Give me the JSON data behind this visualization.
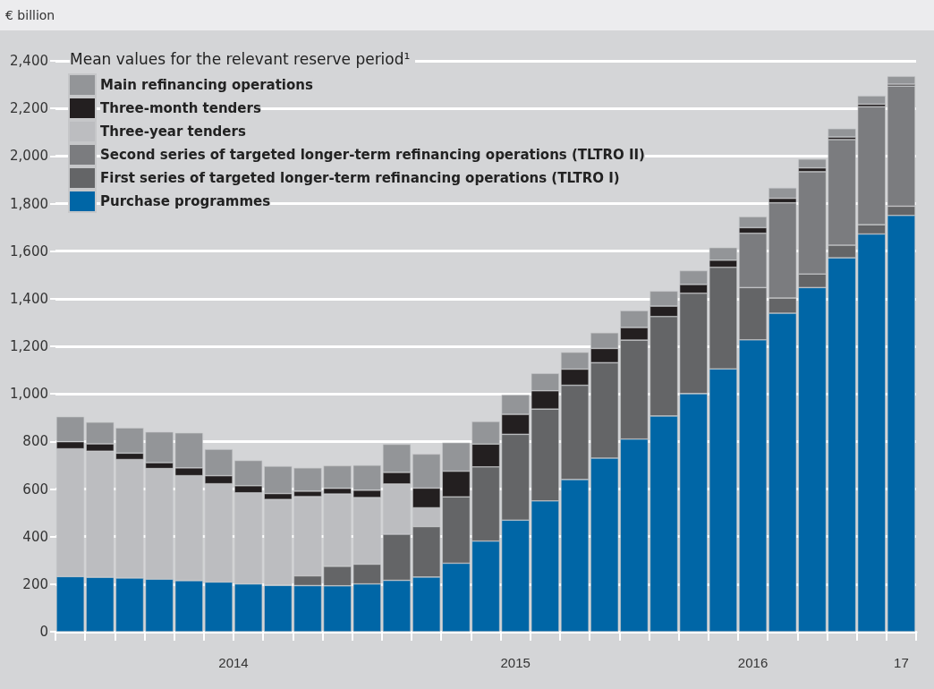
{
  "chart_data": {
    "type": "bar",
    "stacked": true,
    "ylabel": "€ billion",
    "legend_title": "Mean values for the relevant reserve period¹",
    "categories": [
      null,
      null,
      null,
      null,
      null,
      null,
      null,
      null,
      null,
      null,
      null,
      null,
      null,
      null,
      null,
      null,
      null,
      null,
      null,
      null,
      null,
      null,
      null,
      null,
      null,
      null,
      null,
      null,
      null
    ],
    "series": [
      {
        "name": "Purchase programmes",
        "color": "#0066a6",
        "values": [
          232,
          229,
          226,
          221,
          215,
          209,
          201,
          195,
          194,
          193,
          201,
          216,
          230,
          288,
          381,
          469,
          550,
          640,
          730,
          810,
          907,
          1001,
          1105,
          1227,
          1339,
          1447,
          1572,
          1672,
          1750
        ]
      },
      {
        "name": "First series of targeted longer-term refinancing operations (TLTRO I)",
        "color": "#646567",
        "values": [
          null,
          null,
          null,
          null,
          null,
          null,
          null,
          null,
          41,
          82,
          83,
          194,
          212,
          279,
          312,
          361,
          386,
          396,
          401,
          416,
          418,
          422,
          427,
          220,
          64,
          57,
          53,
          39,
          39
        ]
      },
      {
        "name": "Second series of targeted longer-term refinancing operations (TLTRO II)",
        "color": "#7b7c7f",
        "values": [
          null,
          null,
          null,
          null,
          null,
          null,
          null,
          null,
          null,
          null,
          null,
          null,
          null,
          null,
          null,
          null,
          null,
          null,
          null,
          null,
          null,
          null,
          null,
          228,
          400,
          430,
          444,
          496,
          505
        ]
      },
      {
        "name": "Three-year tenders",
        "color": "#bcbdc0",
        "values": [
          537,
          530,
          498,
          465,
          441,
          413,
          383,
          361,
          333,
          304,
          280,
          211,
          79,
          null,
          null,
          null,
          null,
          null,
          null,
          null,
          null,
          null,
          null,
          null,
          null,
          null,
          null,
          null,
          null
        ]
      },
      {
        "name": "Three-month tenders",
        "color": "#231f20",
        "values": [
          30,
          31,
          27,
          25,
          33,
          34,
          30,
          25,
          23,
          24,
          31,
          49,
          83,
          108,
          96,
          84,
          77,
          68,
          60,
          53,
          44,
          37,
          30,
          24,
          19,
          16,
          11,
          11,
          8
        ]
      },
      {
        "name": "Main refinancing operations",
        "color": "#939598",
        "values": [
          105,
          91,
          106,
          129,
          147,
          111,
          106,
          115,
          98,
          95,
          105,
          118,
          143,
          120,
          95,
          82,
          73,
          71,
          66,
          71,
          63,
          58,
          53,
          46,
          44,
          37,
          35,
          35,
          33
        ]
      }
    ],
    "ylim": [
      0,
      2400
    ],
    "yticks": [
      {
        "value": 0,
        "label": "0"
      },
      {
        "value": 200,
        "label": "200"
      },
      {
        "value": 400,
        "label": "400"
      },
      {
        "value": 600,
        "label": "600"
      },
      {
        "value": 800,
        "label": "800"
      },
      {
        "value": 1000,
        "label": "1,000"
      },
      {
        "value": 1200,
        "label": "1,200"
      },
      {
        "value": 1400,
        "label": "1,400"
      },
      {
        "value": 1600,
        "label": "1,600"
      },
      {
        "value": 1800,
        "label": "1,800"
      },
      {
        "value": 2000,
        "label": "2,000"
      },
      {
        "value": 2200,
        "label": "2,200"
      },
      {
        "value": 2400,
        "label": "2,400"
      }
    ],
    "grid": "y",
    "legend": "top left",
    "annotations": [
      "2014",
      "2015",
      "2016",
      "17"
    ]
  }
}
